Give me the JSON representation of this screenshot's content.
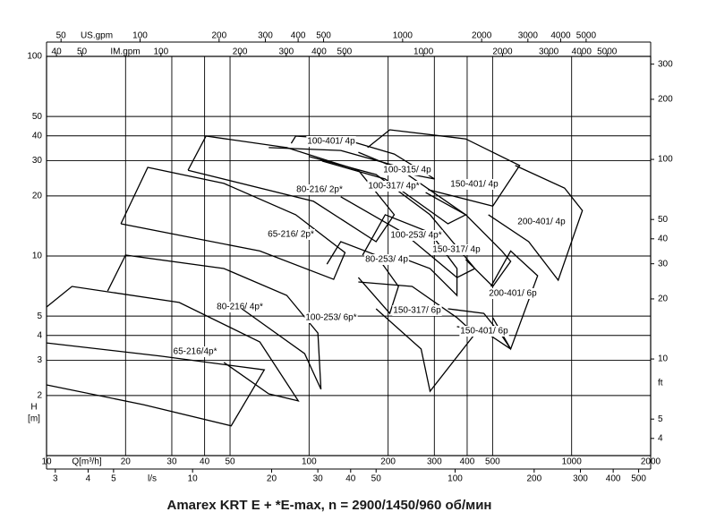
{
  "chart_data": {
    "type": "line",
    "title": "Amarex KRT E + *E-max, n = 2900/1450/960 об/мин",
    "x_label": "Q[m³/h]",
    "xscale": "log",
    "xlim": [
      10,
      2000
    ],
    "xticks": [
      10,
      20,
      30,
      40,
      50,
      100,
      200,
      300,
      400,
      500,
      1000,
      2000
    ],
    "y_label": [
      "H",
      "[m]"
    ],
    "yscale": "log",
    "ylim": [
      1,
      100
    ],
    "yticks": [
      2,
      3,
      4,
      5,
      10,
      20,
      30,
      40,
      50,
      100
    ],
    "y2_label": "ft",
    "y2lim": [
      3.281,
      328.1
    ],
    "y2ticks": [
      4,
      5,
      10,
      20,
      30,
      40,
      50,
      100,
      200,
      300
    ],
    "top_axes": [
      {
        "label": "US.gpm",
        "lim": [
          44.03,
          8806
        ],
        "ticks": [
          50,
          100,
          200,
          300,
          400,
          500,
          1000,
          2000,
          3000,
          4000,
          5000
        ]
      },
      {
        "label": "IM.gpm",
        "lim": [
          36.66,
          7333
        ],
        "ticks": [
          40,
          50,
          100,
          200,
          300,
          400,
          500,
          1000,
          2000,
          3000,
          4000,
          5000
        ]
      }
    ],
    "bottom_axis2": {
      "label": "l/s",
      "lim": [
        2.778,
        555.6
      ],
      "ticks": [
        3,
        4,
        5,
        10,
        20,
        30,
        40,
        50,
        100,
        200,
        300,
        400,
        500
      ]
    },
    "color": "#000000",
    "grid": true,
    "series": [
      {
        "name": "65-216/4p*",
        "x": [
          10,
          27.3,
          67.5,
          50.5,
          23.4,
          10
        ],
        "values": [
          3.67,
          3.15,
          2.69,
          1.41,
          1.8,
          2.26
        ]
      },
      {
        "name": "80-216/ 4p*",
        "x": [
          10,
          12.5,
          32.0,
          64.9,
          91.0,
          70.2,
          47.4
        ],
        "values": [
          5.55,
          7.04,
          5.85,
          3.71,
          1.88,
          2.04,
          2.93
        ]
      },
      {
        "name": "100-253/ 6p*",
        "x": [
          17.1,
          20.0,
          47.4,
          82.2,
          108,
          111,
          96.2,
          55.5
        ],
        "values": [
          6.68,
          10.1,
          8.65,
          6.35,
          4.11,
          2.15,
          3.24,
          5.44
        ]
      },
      {
        "name": "65-216/ 2p*",
        "x": [
          19.2,
          24.3,
          47.4,
          88.9,
          137,
          124,
          64.9,
          19.2
        ],
        "values": [
          14.5,
          27.8,
          23.1,
          16.1,
          10.4,
          7.64,
          10.6,
          14.5
        ]
      },
      {
        "name": "80-216/ 2p*",
        "x": [
          34.6,
          40.5,
          82.2,
          154,
          211,
          180,
          104,
          34.6
        ],
        "values": [
          26.9,
          39.9,
          34.9,
          26.9,
          16.1,
          11.8,
          18.8,
          26.9
        ]
      },
      {
        "name": "100-401/ 4p",
        "x": [
          85.5,
          88.9,
          137,
          211,
          301,
          247,
          154
        ],
        "values": [
          36.7,
          39.9,
          38.3,
          32.4,
          24.3,
          25.6,
          33.1
        ]
      },
      {
        "name": "100-315/ 4p",
        "x": [
          70.2,
          132,
          211,
          395,
          338,
          195,
          112
        ],
        "values": [
          34.9,
          33.8,
          28.4,
          16.1,
          14.5,
          24.3,
          29.9
        ]
      },
      {
        "name": "100-317/ 4p*",
        "x": [
          100,
          180,
          289,
          428,
          366,
          228,
          132
        ],
        "values": [
          31.5,
          25.6,
          16.1,
          8.65,
          7.8,
          13.1,
          19.8
        ]
      },
      {
        "name": "150-401/ 4p",
        "x": [
          167,
          203,
          395,
          634,
          501,
          284
        ],
        "values": [
          34.9,
          42.9,
          38.6,
          28.4,
          17.8,
          21.5
        ]
      },
      {
        "name": "200-401/ 4p",
        "x": [
          610,
          940,
          1099,
          889,
          686,
          482
        ],
        "values": [
          28.4,
          21.9,
          16.9,
          7.57,
          11.8,
          16.1
        ]
      },
      {
        "name": "100-253/ 4p*",
        "x": [
          160,
          195,
          289,
          366,
          366,
          289,
          211
        ],
        "values": [
          10.1,
          16.1,
          13.1,
          8.65,
          6.35,
          8.65,
          10.1
        ]
      },
      {
        "name": "150-317/ 4p",
        "x": [
          278,
          395,
          542,
          586,
          501,
          395
        ],
        "values": [
          20.8,
          16.1,
          10.6,
          9.4,
          7.04,
          9.6
        ]
      },
      {
        "name": "80-253/ 4p",
        "x": [
          117,
          132,
          180,
          219,
          203,
          154
        ],
        "values": [
          9.1,
          11.8,
          10.1,
          7.04,
          5.16,
          7.8
        ]
      },
      {
        "name": "150-317/ 6p",
        "x": [
          154,
          247,
          366,
          428,
          289,
          267,
          180
        ],
        "values": [
          7.41,
          7.04,
          4.91,
          4.07,
          2.1,
          3.42,
          5.44
        ]
      },
      {
        "name": "200-401/ 6p",
        "x": [
          493,
          586,
          742,
          586,
          501
        ],
        "values": [
          7.04,
          10.6,
          7.96,
          3.42,
          4.91
        ]
      },
      {
        "name": "150-401/ 6p",
        "x": [
          338,
          463,
          542,
          586,
          463,
          366
        ],
        "values": [
          5.44,
          5.16,
          3.99,
          3.42,
          4.2,
          4.43
        ]
      }
    ]
  }
}
